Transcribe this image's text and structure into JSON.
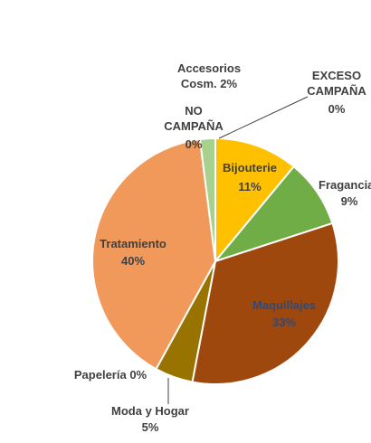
{
  "chart_data": {
    "type": "pie",
    "title": "",
    "slices": [
      {
        "name": "Bijouterie",
        "value": 11,
        "label_name": "Bijouterie",
        "label_pct": "11%",
        "color": "#FFC000"
      },
      {
        "name": "Fragancias",
        "value": 9,
        "label_name": "Fragancias",
        "label_pct": "9%",
        "color": "#70AD47"
      },
      {
        "name": "Maquillajes",
        "value": 33,
        "label_name": "Maquillajes",
        "label_pct": "33%",
        "color": "#9E480E"
      },
      {
        "name": "Moda y Hogar",
        "value": 5,
        "label_name": "Moda y Hogar",
        "label_pct": "5%",
        "color": "#997300"
      },
      {
        "name": "Papelería",
        "value": 0,
        "label_name": "Papelería 0%",
        "label_pct": "",
        "color": "#264478"
      },
      {
        "name": "Tratamiento",
        "value": 40,
        "label_name": "Tratamiento",
        "label_pct": "40%",
        "color": "#F0995A"
      },
      {
        "name": "Accesorios Cosm.",
        "value": 2,
        "label_name": "Accesorios",
        "label_name2": "Cosm. 2%",
        "color": "#A9D18E"
      },
      {
        "name": "NO CAMPAÑA",
        "value": 0,
        "label_name": "NO",
        "label_name2": "CAMPAÑA",
        "label_pct": "0%",
        "color": "#4472C4"
      },
      {
        "name": "EXCESO CAMPAÑA",
        "value": 0,
        "label_name": "EXCESO",
        "label_name2": "CAMPAÑA",
        "label_pct": "0%",
        "color": "#ED7D31"
      }
    ],
    "legend": "none"
  }
}
